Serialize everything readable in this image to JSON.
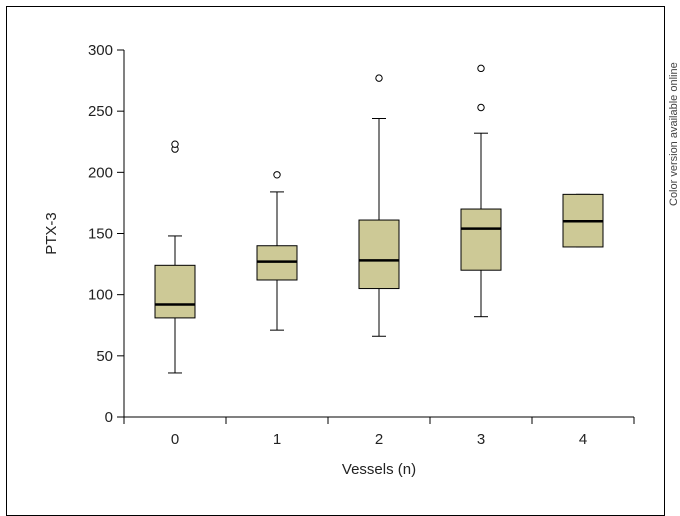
{
  "side_note": "Color version available online",
  "chart_data": {
    "type": "box",
    "xlabel": "Vessels (n)",
    "ylabel": "PTX-3",
    "ylim": [
      0,
      300
    ],
    "yticks": [
      0,
      50,
      100,
      150,
      200,
      250,
      300
    ],
    "categories": [
      "0",
      "1",
      "2",
      "3",
      "4"
    ],
    "box_color": "#cdc996",
    "boxes": [
      {
        "category": "0",
        "whisker_low": 36,
        "q1": 81,
        "median": 92,
        "q3": 124,
        "whisker_high": 148,
        "outliers": [
          219,
          223
        ]
      },
      {
        "category": "1",
        "whisker_low": 71,
        "q1": 112,
        "median": 127,
        "q3": 140,
        "whisker_high": 184,
        "outliers": [
          198
        ]
      },
      {
        "category": "2",
        "whisker_low": 66,
        "q1": 105,
        "median": 128,
        "q3": 161,
        "whisker_high": 244,
        "outliers": [
          277
        ]
      },
      {
        "category": "3",
        "whisker_low": 82,
        "q1": 120,
        "median": 154,
        "q3": 170,
        "whisker_high": 232,
        "outliers": [
          253,
          285
        ]
      },
      {
        "category": "4",
        "whisker_low": 139,
        "q1": 139,
        "median": 160,
        "q3": 182,
        "whisker_high": 182,
        "outliers": []
      }
    ]
  }
}
